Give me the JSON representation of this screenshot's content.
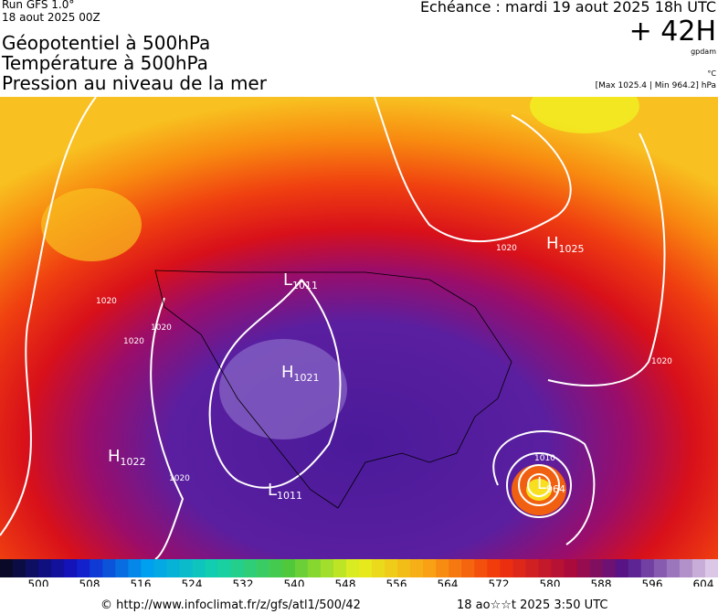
{
  "header": {
    "run": "Run GFS 1.0°",
    "date": "18 aout 2025 00Z",
    "titles": [
      "Géopotentiel à 500hPa",
      "Température à 500hPa",
      "Pression au niveau de la mer"
    ],
    "echeance": "Echéance : mardi 19 aout 2025 18h UTC",
    "lead": "+ 42H",
    "unit_geo": "gpdam",
    "unit_temp": "°C",
    "extremes": "[Max 1025.4 | Min 964.2] hPa"
  },
  "map": {
    "centers": [
      {
        "type": "H",
        "value": "1025"
      },
      {
        "type": "L",
        "value": "1011"
      },
      {
        "type": "H",
        "value": "1021"
      },
      {
        "type": "H",
        "value": "1022"
      },
      {
        "type": "L",
        "value": "1011"
      },
      {
        "type": "L",
        "value": "964"
      }
    ],
    "isobar_labels": [
      "1020",
      "1020",
      "1020",
      "1020",
      "1020",
      "1020",
      "1010"
    ]
  },
  "colorbar": {
    "ticks": [
      "500",
      "508",
      "516",
      "524",
      "532",
      "540",
      "548",
      "556",
      "564",
      "572",
      "580",
      "588",
      "596",
      "604"
    ]
  },
  "footer": {
    "url": "© http://www.infoclimat.fr/z/gfs/atl1/500/42",
    "timestamp": "18 ao☆☆t 2025  3:50 UTC"
  }
}
